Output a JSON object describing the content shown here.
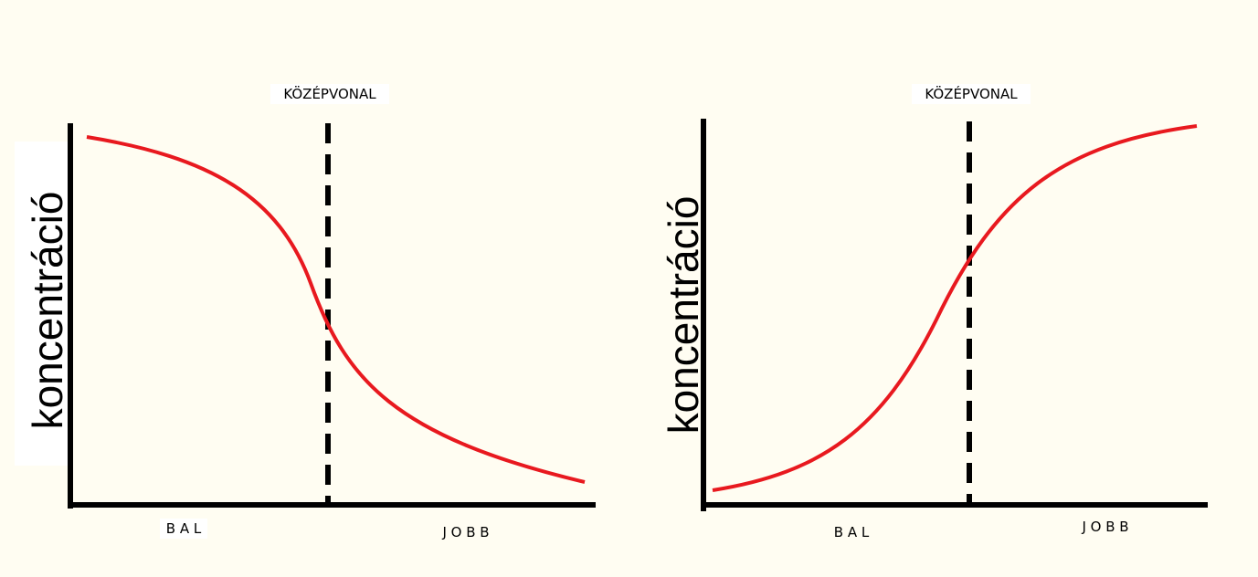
{
  "panels": [
    {
      "midline_label": "KÖZÉPVONAL",
      "y_label": "koncentráció",
      "x_labels": [
        "B A L",
        "J O B B"
      ]
    },
    {
      "midline_label": "KÖZÉPVONAL",
      "y_label": "koncentráció",
      "x_labels": [
        "B A L",
        "J O B B"
      ]
    }
  ]
}
